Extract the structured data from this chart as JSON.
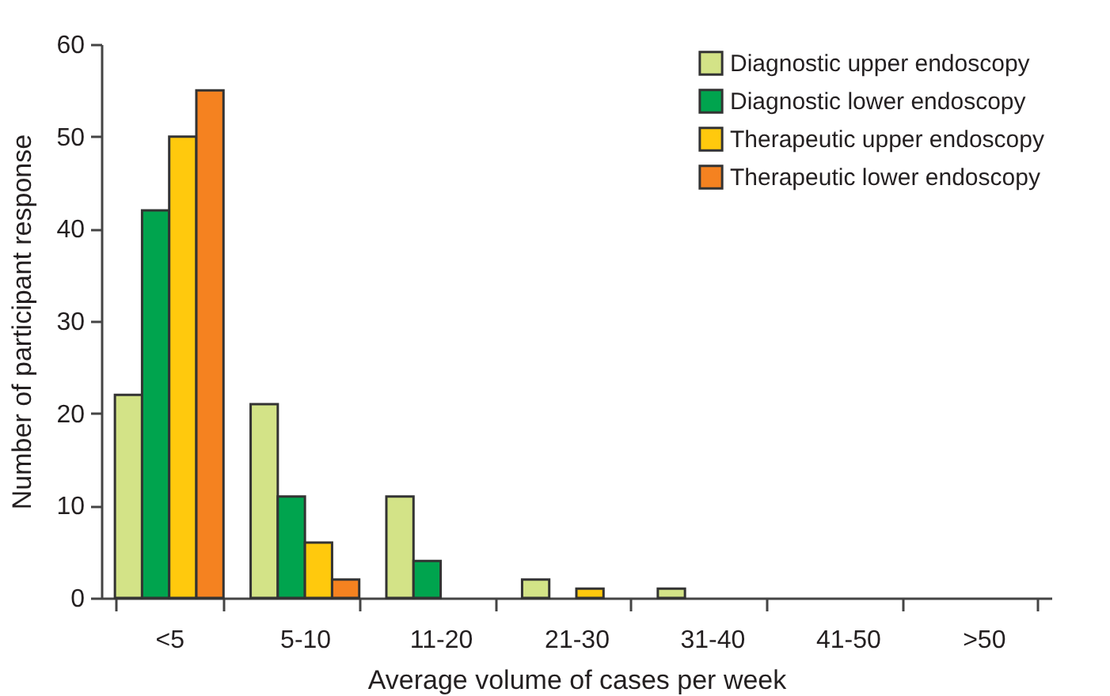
{
  "chart_data": {
    "type": "bar",
    "xlabel": "Average volume of cases per week",
    "ylabel": "Number of participant response",
    "categories": [
      "<5",
      "5-10",
      "11-20",
      "21-30",
      "31-40",
      "41-50",
      ">50"
    ],
    "series": [
      {
        "name": "Diagnostic upper endoscopy",
        "color": "#d3e387",
        "values": [
          22,
          21,
          11,
          2,
          1,
          0,
          0
        ]
      },
      {
        "name": "Diagnostic lower endoscopy",
        "color": "#00a44e",
        "values": [
          42,
          11,
          4,
          0,
          0,
          0,
          0
        ]
      },
      {
        "name": "Therapeutic upper endoscopy",
        "color": "#ffc90d",
        "values": [
          50,
          6,
          0,
          1,
          0,
          0,
          0
        ]
      },
      {
        "name": "Therapeutic lower endoscopy",
        "color": "#f58220",
        "values": [
          55,
          2,
          0,
          0,
          0,
          0,
          0
        ]
      }
    ],
    "ylim": [
      0,
      60
    ],
    "yticks": [
      0,
      10,
      20,
      30,
      40,
      50,
      60
    ],
    "grid": false,
    "legend": "top right"
  }
}
